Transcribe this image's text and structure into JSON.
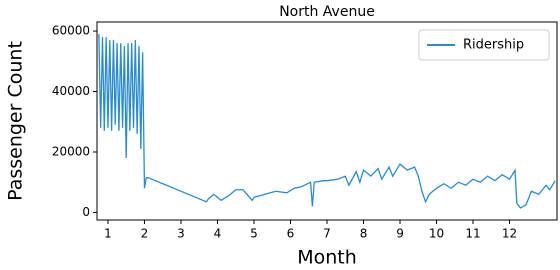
{
  "chart_data": {
    "type": "line",
    "title": "North Avenue",
    "x_label": "Month",
    "y_label": "Passenger Count",
    "legend": "upper right",
    "xlim": [
      0.7,
      13.3
    ],
    "xticks": [
      1,
      2,
      3,
      4,
      5,
      6,
      7,
      8,
      9,
      10,
      11,
      12
    ],
    "ylim": [
      -2500,
      63000
    ],
    "yticks": [
      0,
      20000,
      40000,
      60000
    ],
    "series": [
      {
        "name": "Ridership",
        "color": "#2a8ccc",
        "x": [
          0.75,
          0.8,
          0.85,
          0.9,
          0.95,
          1.0,
          1.05,
          1.1,
          1.15,
          1.2,
          1.25,
          1.3,
          1.35,
          1.4,
          1.45,
          1.5,
          1.55,
          1.6,
          1.65,
          1.7,
          1.75,
          1.8,
          1.85,
          1.9,
          1.95,
          2.0,
          2.05,
          2.1,
          3.7,
          3.75,
          3.9,
          4.0,
          4.1,
          4.3,
          4.5,
          4.7,
          4.95,
          5.0,
          5.3,
          5.6,
          5.9,
          6.1,
          6.3,
          6.55,
          6.6,
          6.65,
          6.9,
          7.0,
          7.3,
          7.5,
          7.6,
          7.8,
          7.9,
          8.0,
          8.2,
          8.4,
          8.5,
          8.7,
          8.8,
          9.0,
          9.2,
          9.4,
          9.5,
          9.6,
          9.7,
          9.8,
          10.0,
          10.2,
          10.4,
          10.6,
          10.8,
          11.0,
          11.2,
          11.4,
          11.6,
          11.8,
          12.0,
          12.15,
          12.2,
          12.3,
          12.45,
          12.6,
          12.8,
          13.0,
          13.1,
          13.25
        ],
        "values": [
          59000,
          28000,
          58000,
          27000,
          58000,
          28000,
          57000,
          27000,
          57000,
          29000,
          56000,
          27000,
          56000,
          28000,
          55000,
          18000,
          56000,
          27000,
          56000,
          28000,
          57000,
          26000,
          55000,
          21000,
          53000,
          8000,
          11500,
          11500,
          3500,
          4500,
          6000,
          5000,
          4000,
          5500,
          7500,
          7500,
          4000,
          5000,
          6000,
          7000,
          6500,
          8000,
          8500,
          10000,
          2000,
          10000,
          10500,
          10500,
          11000,
          12000,
          9000,
          13500,
          10000,
          14000,
          12000,
          14500,
          11000,
          15000,
          12000,
          16000,
          14000,
          15000,
          12000,
          7000,
          3500,
          6000,
          8000,
          9500,
          8000,
          10000,
          9000,
          11000,
          10000,
          12000,
          10500,
          12500,
          11000,
          14000,
          3000,
          1500,
          2500,
          7000,
          6000,
          9000,
          7500,
          10500
        ]
      }
    ]
  }
}
